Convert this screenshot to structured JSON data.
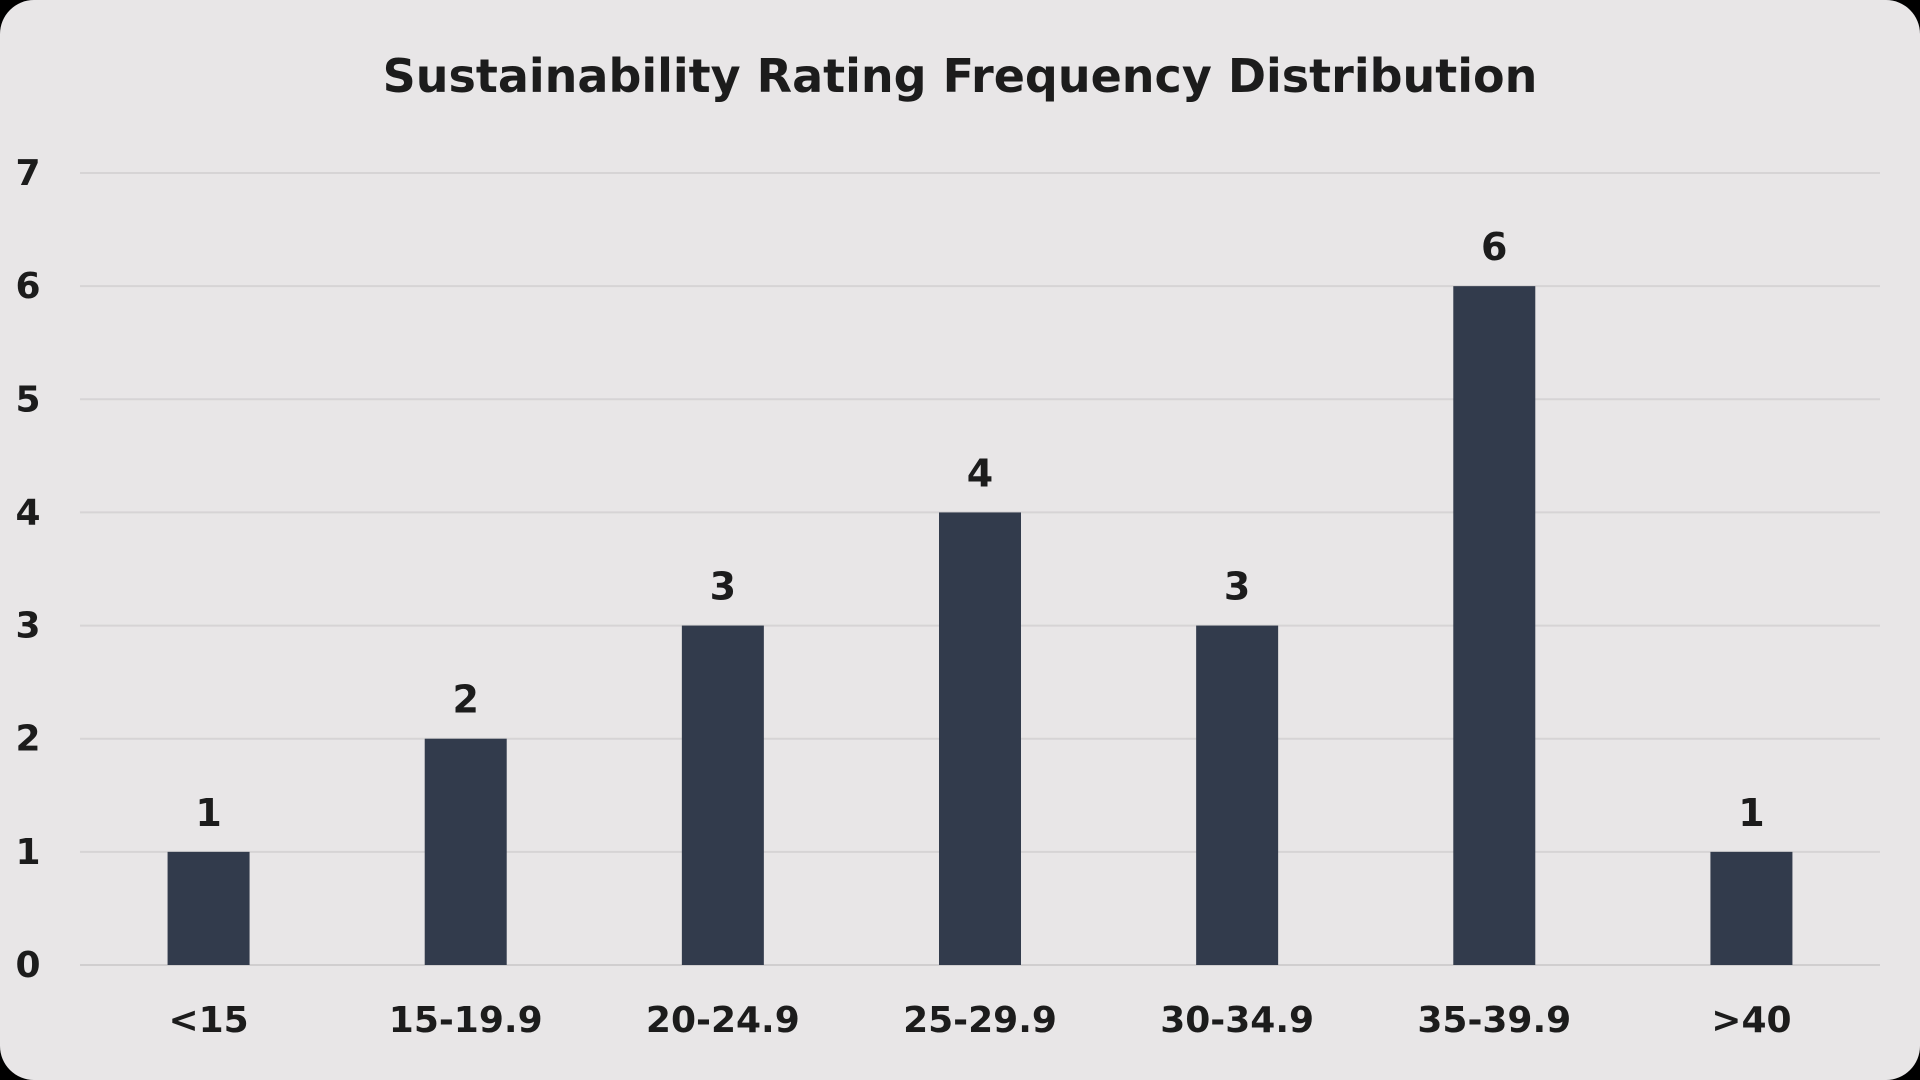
{
  "chart_data": {
    "type": "bar",
    "title": "Sustainability Rating Frequency Distribution",
    "xlabel": "",
    "ylabel": "",
    "categories": [
      "<15",
      "15-19.9",
      "20-24.9",
      "25-29.9",
      "30-34.9",
      "35-39.9",
      ">40"
    ],
    "values": [
      1,
      2,
      3,
      4,
      3,
      6,
      1
    ],
    "ylim": [
      0,
      7
    ],
    "yticks": [
      0,
      1,
      2,
      3,
      4,
      5,
      6,
      7
    ],
    "grid": true,
    "legend": "none",
    "data_labels": true,
    "bar_color": "#323b4c",
    "background_color": "#e8e6e7"
  }
}
